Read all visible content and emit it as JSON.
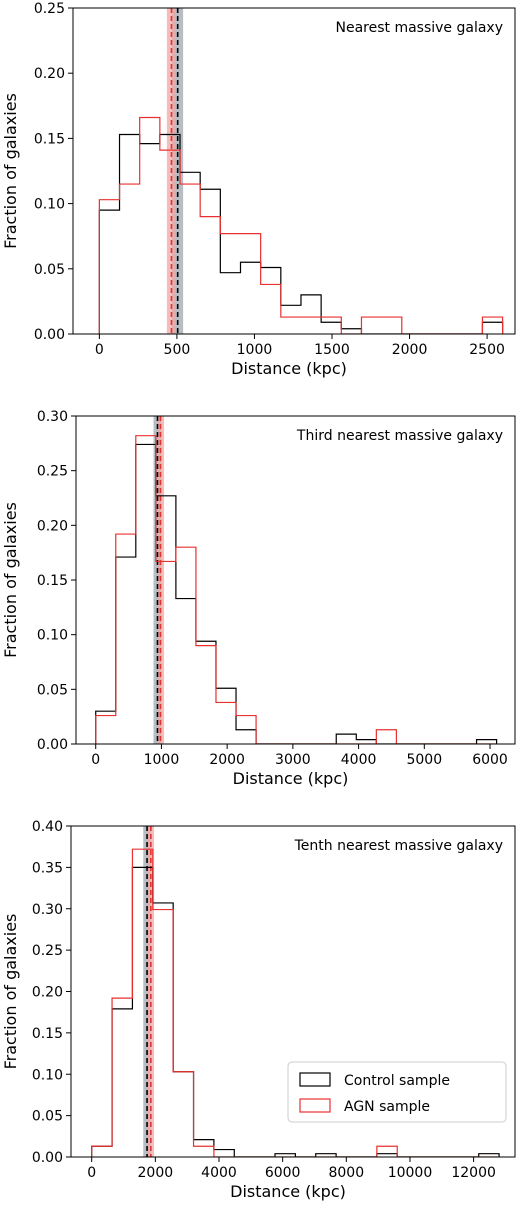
{
  "chart_data": [
    {
      "type": "histogram",
      "annotation": "Nearest massive galaxy",
      "xlabel": "Distance (kpc)",
      "ylabel": "Fraction of galaxies",
      "xlim": [
        -170,
        2680
      ],
      "ylim": [
        0,
        0.25
      ],
      "xticks": [
        0,
        500,
        1000,
        1500,
        2000,
        2500
      ],
      "yticks": [
        0.0,
        0.05,
        0.1,
        0.15,
        0.2,
        0.25
      ],
      "ytick_labels": [
        "0.00",
        "0.05",
        "0.10",
        "0.15",
        "0.20",
        "0.25"
      ],
      "series": [
        {
          "name": "Control sample",
          "color": "#000000",
          "edges": [
            0,
            130,
            260,
            390,
            520,
            650,
            780,
            910,
            1040,
            1170,
            1300,
            1430,
            1560,
            1690,
            1820,
            1950,
            2080,
            2210,
            2340,
            2470,
            2600
          ],
          "values": [
            0.095,
            0.153,
            0.146,
            0.153,
            0.124,
            0.111,
            0.047,
            0.055,
            0.051,
            0.022,
            0.03,
            0.009,
            0.004,
            0.0,
            0.0,
            0.0,
            0.0,
            0.0,
            0.0,
            0.009
          ]
        },
        {
          "name": "AGN sample",
          "color": "#e8312f",
          "edges": [
            0,
            130,
            260,
            390,
            520,
            650,
            780,
            910,
            1040,
            1170,
            1300,
            1430,
            1560,
            1690,
            1820,
            1950,
            2080,
            2210,
            2340,
            2470,
            2600
          ],
          "values": [
            0.103,
            0.115,
            0.166,
            0.141,
            0.115,
            0.09,
            0.077,
            0.077,
            0.038,
            0.013,
            0.013,
            0.013,
            0.0,
            0.013,
            0.013,
            0.0,
            0.0,
            0.0,
            0.0,
            0.013
          ]
        }
      ],
      "bands": [
        {
          "name": "Control sample",
          "color": "#000000",
          "center": 505,
          "low": 470,
          "high": 540
        },
        {
          "name": "AGN sample",
          "color": "#e8312f",
          "center": 465,
          "low": 435,
          "high": 490
        }
      ]
    },
    {
      "type": "histogram",
      "annotation": "Third nearest massive galaxy",
      "xlabel": "Distance (kpc)",
      "ylabel": "Fraction of galaxies",
      "xlim": [
        -300,
        6380
      ],
      "ylim": [
        0,
        0.3
      ],
      "xticks": [
        0,
        1000,
        2000,
        3000,
        4000,
        5000,
        6000
      ],
      "yticks": [
        0.0,
        0.05,
        0.1,
        0.15,
        0.2,
        0.25,
        0.3
      ],
      "ytick_labels": [
        "0.00",
        "0.05",
        "0.10",
        "0.15",
        "0.20",
        "0.25",
        "0.30"
      ],
      "series": [
        {
          "name": "Control sample",
          "color": "#000000",
          "edges": [
            0,
            305,
            610,
            915,
            1220,
            1525,
            1830,
            2135,
            2440,
            2745,
            3050,
            3355,
            3660,
            3965,
            4270,
            4575,
            4880,
            5185,
            5490,
            5795,
            6100
          ],
          "values": [
            0.03,
            0.171,
            0.274,
            0.227,
            0.133,
            0.094,
            0.051,
            0.013,
            0.0,
            0.0,
            0.0,
            0.0,
            0.009,
            0.004,
            0.0,
            0.0,
            0.0,
            0.0,
            0.0,
            0.004
          ]
        },
        {
          "name": "AGN sample",
          "color": "#e8312f",
          "edges": [
            0,
            305,
            610,
            915,
            1220,
            1525,
            1830,
            2135,
            2440,
            2745,
            3050,
            3355,
            3660,
            3965,
            4270,
            4575,
            4880,
            5185,
            5490,
            5795,
            6100
          ],
          "values": [
            0.026,
            0.192,
            0.282,
            0.167,
            0.18,
            0.09,
            0.038,
            0.026,
            0.0,
            0.0,
            0.0,
            0.0,
            0.0,
            0.0,
            0.013,
            0.0,
            0.0,
            0.0,
            0.0,
            0.0
          ]
        }
      ],
      "bands": [
        {
          "name": "Control sample",
          "color": "#000000",
          "center": 940,
          "low": 880,
          "high": 1000
        },
        {
          "name": "AGN sample",
          "color": "#e8312f",
          "center": 985,
          "low": 935,
          "high": 1040
        }
      ]
    },
    {
      "type": "histogram",
      "annotation": "Tenth nearest massive galaxy",
      "xlabel": "Distance (kpc)",
      "ylabel": "Fraction of galaxies",
      "xlim": [
        -650,
        13300
      ],
      "ylim": [
        0,
        0.4
      ],
      "xticks": [
        0,
        2000,
        4000,
        6000,
        8000,
        10000,
        12000
      ],
      "yticks": [
        0.0,
        0.05,
        0.1,
        0.15,
        0.2,
        0.25,
        0.3,
        0.35,
        0.4
      ],
      "ytick_labels": [
        "0.00",
        "0.05",
        "0.10",
        "0.15",
        "0.20",
        "0.25",
        "0.30",
        "0.35",
        "0.40"
      ],
      "series": [
        {
          "name": "Control sample",
          "color": "#000000",
          "edges": [
            0,
            640,
            1280,
            1920,
            2560,
            3200,
            3840,
            4480,
            5120,
            5760,
            6400,
            7040,
            7680,
            8320,
            8960,
            9600,
            10240,
            10880,
            11520,
            12160,
            12800
          ],
          "values": [
            0.013,
            0.179,
            0.35,
            0.307,
            0.103,
            0.021,
            0.009,
            0.0,
            0.0,
            0.004,
            0.0,
            0.004,
            0.0,
            0.0,
            0.004,
            0.0,
            0.0,
            0.0,
            0.0,
            0.004
          ]
        },
        {
          "name": "AGN sample",
          "color": "#e8312f",
          "edges": [
            0,
            640,
            1280,
            1920,
            2560,
            3200,
            3840,
            4480,
            5120,
            5760,
            6400,
            7040,
            7680,
            8320,
            8960,
            9600,
            10240,
            10880,
            11520,
            12160,
            12800
          ],
          "values": [
            0.013,
            0.192,
            0.372,
            0.299,
            0.103,
            0.013,
            0.0,
            0.0,
            0.0,
            0.0,
            0.0,
            0.0,
            0.0,
            0.0,
            0.013,
            0.0,
            0.0,
            0.0,
            0.0,
            0.0
          ]
        }
      ],
      "bands": [
        {
          "name": "Control sample",
          "color": "#000000",
          "center": 1740,
          "low": 1620,
          "high": 1860
        },
        {
          "name": "AGN sample",
          "color": "#e8312f",
          "center": 1860,
          "low": 1760,
          "high": 1960
        }
      ],
      "legend": {
        "position": "lower right",
        "entries": [
          "Control sample",
          "AGN sample"
        ]
      }
    }
  ]
}
